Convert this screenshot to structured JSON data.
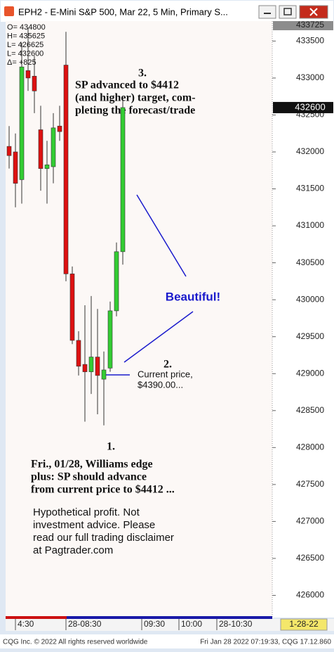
{
  "window": {
    "title": "EPH2 - E-Mini S&P 500, Mar 22, 5 Min, Primary S..."
  },
  "chart_data": {
    "type": "candlestick",
    "categories": [
      null,
      null,
      null,
      null,
      null,
      null,
      null,
      null,
      null,
      null,
      null,
      null,
      null,
      null,
      null,
      null,
      null,
      null,
      null
    ],
    "open": [
      432075,
      432000,
      431625,
      433100,
      433025,
      432300,
      431775,
      431800,
      432350,
      433175,
      430350,
      429450,
      429125,
      429025,
      429225,
      428925,
      429075,
      429850,
      430650
    ],
    "high": [
      432350,
      432250,
      433475,
      433675,
      433300,
      432625,
      432150,
      432525,
      432625,
      433625,
      430450,
      429575,
      429925,
      430050,
      429875,
      429300,
      429975,
      430775,
      432700
    ],
    "low": [
      431775,
      431250,
      431300,
      432825,
      432525,
      431475,
      431300,
      431575,
      432150,
      430250,
      429400,
      428975,
      428350,
      428725,
      428450,
      428300,
      429025,
      429775,
      430475
    ],
    "close": [
      431950,
      431575,
      433150,
      433000,
      432825,
      431775,
      431825,
      432325,
      432275,
      430350,
      429450,
      429100,
      429025,
      429225,
      428975,
      429050,
      429850,
      430650,
      432600
    ],
    "up_color": "#33cc33",
    "down_color": "#dd1111",
    "ylim": [
      425700,
      433770
    ],
    "yticks": [
      426000,
      426500,
      427000,
      427500,
      428000,
      428500,
      429000,
      429500,
      430000,
      430500,
      431000,
      431500,
      432000,
      432500,
      433000,
      433500
    ],
    "top_price": 433725,
    "last_price": 432600,
    "date_label": "1-28-22",
    "time_labels": [
      "4:30",
      "28-08:30",
      "09:30",
      "10:00",
      "28-10:30"
    ],
    "info": [
      "O=   434800",
      "H=   435625",
      "L=   426625",
      "L=   432600",
      "Δ=       +825"
    ],
    "annotation_3": {
      "number": "3.",
      "lines": [
        "SP advanced to $4412",
        "(and higher) target, com-",
        "pleting the forecast/trade"
      ]
    },
    "annotation_beautiful": "Beautiful!",
    "annotation_2": {
      "number": "2.",
      "lines": [
        "Current price,",
        "$4390.00..."
      ]
    },
    "annotation_1": {
      "number": "1.",
      "lines": [
        "Fri., 01/28, Williams edge",
        "plus: SP should advance",
        "from current price to $4412 ..."
      ]
    },
    "disclaimer": [
      "Hypothetical profit. Not",
      "investment advice. Please",
      "read our full trading disclaimer",
      "at Pagtrader.com"
    ]
  },
  "footer": {
    "left": "CQG Inc. © 2022 All rights reserved worldwide",
    "right": "Fri Jan 28 2022 07:19:33, CQG 17.12.860"
  }
}
